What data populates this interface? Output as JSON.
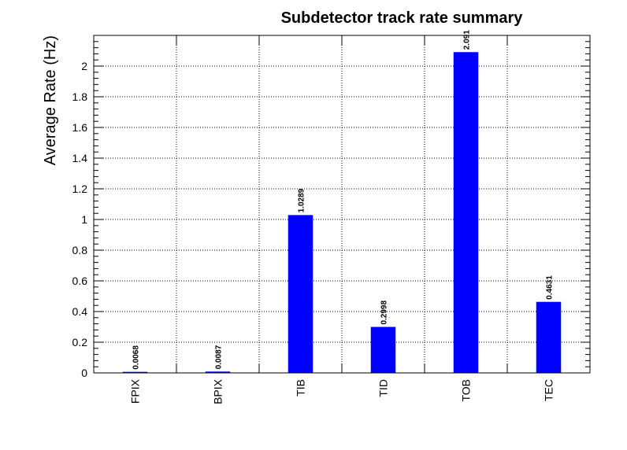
{
  "chart_data": {
    "type": "bar",
    "title": "Subdetector track rate summary",
    "xlabel": "",
    "ylabel": "Average Rate (Hz)",
    "categories": [
      "FPIX",
      "BPIX",
      "TIB",
      "TID",
      "TOB",
      "TEC"
    ],
    "values": [
      0.0068,
      0.0087,
      1.0289,
      0.2998,
      2.091,
      0.4631
    ],
    "data_labels": [
      "0.0068",
      "0.0087",
      "1.0289",
      "0.2998",
      "2.091",
      "0.4631"
    ],
    "ylim": [
      0,
      2.2
    ],
    "yticks": [
      0,
      0.2,
      0.4,
      0.6,
      0.8,
      1,
      1.2,
      1.4,
      1.6,
      1.8,
      2
    ],
    "ytick_labels": [
      "0",
      "0.2",
      "0.4",
      "0.6",
      "0.8",
      "1",
      "1.2",
      "1.4",
      "1.6",
      "1.8",
      "2"
    ],
    "grid": true,
    "bar_color": "#0000ff"
  }
}
